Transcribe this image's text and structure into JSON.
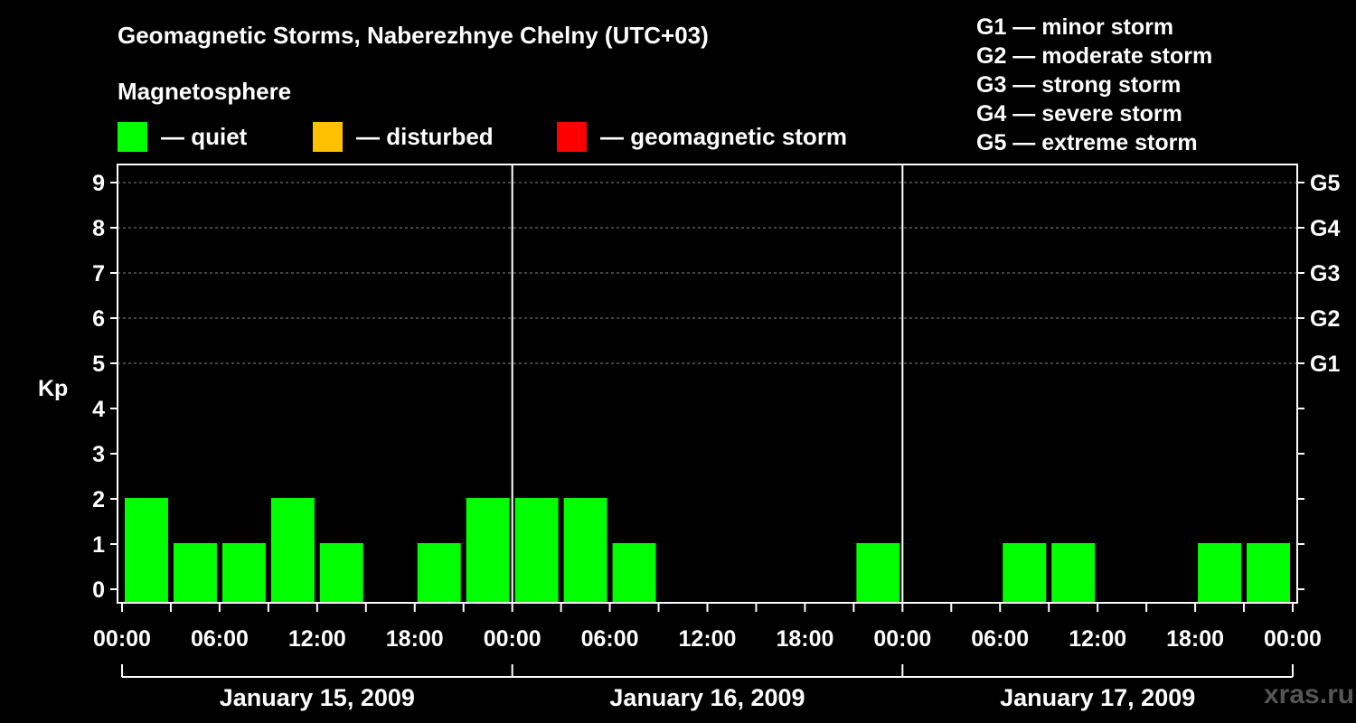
{
  "title": "Geomagnetic Storms, Naberezhnye Chelny (UTC+03)",
  "subtitle": "Magnetosphere",
  "legend": [
    {
      "label": "— quiet",
      "color": "#00ff00"
    },
    {
      "label": "— disturbed",
      "color": "#ffc000"
    },
    {
      "label": "— geomagnetic storm",
      "color": "#ff0000"
    }
  ],
  "g_scale": [
    "G1 — minor storm",
    "G2 — moderate storm",
    "G3 — strong storm",
    "G4 — severe storm",
    "G5 — extreme storm"
  ],
  "watermark": "xras.ru",
  "chart_data": {
    "type": "bar",
    "ylabel": "Kp",
    "ylim": [
      0,
      9
    ],
    "yticks": [
      "0",
      "1",
      "2",
      "3",
      "4",
      "5",
      "6",
      "7",
      "8",
      "9"
    ],
    "right_axis_labels": [
      {
        "kp": 5,
        "label": "G1"
      },
      {
        "kp": 6,
        "label": "G2"
      },
      {
        "kp": 7,
        "label": "G3"
      },
      {
        "kp": 8,
        "label": "G4"
      },
      {
        "kp": 9,
        "label": "G5"
      }
    ],
    "days": [
      "January 15, 2009",
      "January 16, 2009",
      "January 17, 2009"
    ],
    "xticks": [
      "00:00",
      "06:00",
      "12:00",
      "18:00",
      "00:00",
      "06:00",
      "12:00",
      "18:00",
      "00:00",
      "06:00",
      "12:00",
      "18:00",
      "00:00"
    ],
    "interval_hours": 3,
    "series": [
      {
        "name": "Kp",
        "color": "#00ff00",
        "values": [
          2,
          1,
          1,
          2,
          1,
          0,
          1,
          2,
          2,
          2,
          1,
          0,
          0,
          0,
          0,
          1,
          0,
          0,
          1,
          1,
          0,
          0,
          1,
          1
        ]
      }
    ],
    "grid": true
  }
}
